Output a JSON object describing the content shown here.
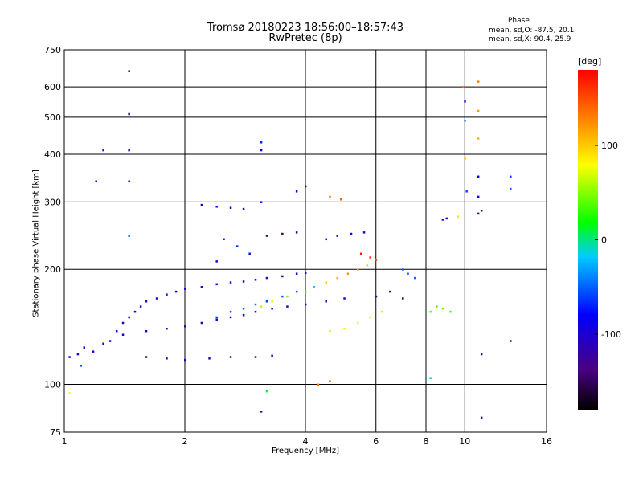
{
  "title_line1": "Tromsø 20180223 18:56:00–18:57:43",
  "title_line2": "RwPretec (8p)",
  "phase_box": {
    "title": "Phase",
    "o_line": "mean, sd,O: -87.5, 20.1",
    "x_line": "mean, sd,X:  90.4, 25.9"
  },
  "colorbar": {
    "label": "[deg]",
    "ticks": [
      "100",
      "0",
      "-100"
    ],
    "tick_values": [
      100,
      0,
      -100
    ],
    "range": [
      -180,
      180
    ]
  },
  "chart_data": {
    "type": "scatter",
    "xlabel": "Frequency [MHz]",
    "ylabel": "Stationary phase Virtual Height [km]",
    "xscale": "log",
    "yscale": "log",
    "xlim": [
      1,
      16
    ],
    "ylim": [
      75,
      750
    ],
    "xticks": [
      1,
      2,
      4,
      6,
      8,
      10,
      16
    ],
    "xtick_labels": [
      "1",
      "2",
      "4",
      "6",
      "8",
      "10",
      "16"
    ],
    "yticks": [
      75,
      100,
      200,
      300,
      400,
      500,
      600,
      750
    ],
    "ytick_labels": [
      "75",
      "100",
      "200",
      "300",
      "400",
      "500",
      "600",
      "750"
    ],
    "grid": true,
    "points": [
      [
        1.03,
        118,
        -110
      ],
      [
        1.08,
        120,
        -100
      ],
      [
        1.12,
        125,
        -105
      ],
      [
        1.18,
        122,
        -95
      ],
      [
        1.25,
        128,
        -110
      ],
      [
        1.3,
        130,
        -100
      ],
      [
        1.35,
        138,
        -105
      ],
      [
        1.4,
        145,
        -110
      ],
      [
        1.45,
        150,
        -100
      ],
      [
        1.5,
        155,
        -115
      ],
      [
        1.55,
        160,
        -105
      ],
      [
        1.6,
        165,
        -110
      ],
      [
        1.7,
        168,
        -100
      ],
      [
        1.8,
        172,
        -110
      ],
      [
        1.9,
        175,
        -105
      ],
      [
        2.0,
        178,
        -100
      ],
      [
        2.2,
        180,
        -110
      ],
      [
        2.4,
        183,
        -105
      ],
      [
        2.6,
        185,
        -100
      ],
      [
        2.8,
        186,
        -110
      ],
      [
        3.0,
        188,
        -105
      ],
      [
        3.2,
        190,
        -100
      ],
      [
        3.5,
        192,
        -110
      ],
      [
        3.8,
        195,
        -105
      ],
      [
        4.0,
        196,
        -100
      ],
      [
        1.4,
        135,
        -95
      ],
      [
        1.6,
        138,
        -100
      ],
      [
        1.8,
        140,
        -105
      ],
      [
        2.0,
        142,
        -110
      ],
      [
        2.2,
        145,
        -100
      ],
      [
        2.4,
        148,
        -105
      ],
      [
        2.6,
        150,
        -110
      ],
      [
        2.8,
        152,
        -100
      ],
      [
        3.0,
        155,
        -105
      ],
      [
        3.3,
        158,
        -110
      ],
      [
        3.6,
        160,
        -100
      ],
      [
        4.0,
        162,
        -105
      ],
      [
        4.5,
        165,
        -110
      ],
      [
        5.0,
        168,
        -100
      ],
      [
        1.6,
        118,
        -115
      ],
      [
        1.8,
        117,
        -120
      ],
      [
        2.0,
        116,
        -110
      ],
      [
        2.3,
        117,
        -115
      ],
      [
        2.6,
        118,
        -120
      ],
      [
        3.0,
        118,
        -110
      ],
      [
        3.3,
        119,
        -115
      ],
      [
        2.4,
        150,
        -60
      ],
      [
        2.6,
        155,
        -55
      ],
      [
        2.8,
        158,
        -50
      ],
      [
        3.0,
        162,
        -45
      ],
      [
        3.2,
        165,
        -60
      ],
      [
        3.5,
        170,
        -50
      ],
      [
        3.8,
        175,
        -55
      ],
      [
        3.1,
        160,
        60
      ],
      [
        3.3,
        165,
        70
      ],
      [
        3.6,
        170,
        50
      ],
      [
        4.0,
        175,
        40
      ],
      [
        4.2,
        180,
        -20
      ],
      [
        4.5,
        185,
        100
      ],
      [
        4.8,
        190,
        110
      ],
      [
        5.1,
        195,
        120
      ],
      [
        5.4,
        200,
        110
      ],
      [
        5.7,
        205,
        100
      ],
      [
        4.6,
        138,
        90
      ],
      [
        5.0,
        140,
        85
      ],
      [
        5.4,
        145,
        80
      ],
      [
        5.8,
        150,
        75
      ],
      [
        6.2,
        155,
        70
      ],
      [
        6.0,
        170,
        -140
      ],
      [
        6.5,
        175,
        -145
      ],
      [
        7.0,
        168,
        -150
      ],
      [
        4.5,
        240,
        -110
      ],
      [
        4.8,
        245,
        -105
      ],
      [
        5.2,
        248,
        -100
      ],
      [
        5.6,
        250,
        -95
      ],
      [
        3.2,
        245,
        -140
      ],
      [
        3.5,
        248,
        -145
      ],
      [
        3.8,
        250,
        -140
      ],
      [
        2.2,
        295,
        -90
      ],
      [
        2.4,
        292,
        -85
      ],
      [
        2.6,
        290,
        -95
      ],
      [
        2.8,
        288,
        -90
      ],
      [
        3.8,
        320,
        -80
      ],
      [
        4.0,
        330,
        -75
      ],
      [
        4.6,
        310,
        130
      ],
      [
        4.9,
        305,
        140
      ],
      [
        2.5,
        240,
        -70
      ],
      [
        2.7,
        230,
        -65
      ],
      [
        2.9,
        220,
        -75
      ],
      [
        2.4,
        210,
        -80
      ],
      [
        8.2,
        155,
        40
      ],
      [
        8.5,
        160,
        35
      ],
      [
        8.8,
        158,
        45
      ],
      [
        9.2,
        155,
        40
      ],
      [
        8.8,
        270,
        -100
      ],
      [
        9.0,
        272,
        -95
      ],
      [
        9.6,
        275,
        90
      ],
      [
        10.8,
        280,
        -140
      ],
      [
        11.0,
        285,
        -145
      ],
      [
        10.8,
        620,
        130
      ],
      [
        10.8,
        520,
        120
      ],
      [
        10.8,
        440,
        110
      ],
      [
        10.8,
        350,
        -80
      ],
      [
        10.8,
        310,
        -90
      ],
      [
        9.9,
        600,
        140
      ],
      [
        10.0,
        550,
        -120
      ],
      [
        10.0,
        490,
        -40
      ],
      [
        10.0,
        390,
        110
      ],
      [
        10.1,
        320,
        -60
      ],
      [
        1.45,
        660,
        -150
      ],
      [
        1.45,
        510,
        -110
      ],
      [
        1.45,
        410,
        -100
      ],
      [
        1.45,
        340,
        -90
      ],
      [
        1.45,
        245,
        -50
      ],
      [
        1.03,
        95,
        80
      ],
      [
        1.1,
        112,
        -60
      ],
      [
        1.25,
        410,
        -70
      ],
      [
        1.2,
        340,
        -100
      ],
      [
        3.1,
        430,
        -70
      ],
      [
        3.1,
        410,
        -90
      ],
      [
        3.1,
        300,
        -80
      ],
      [
        3.1,
        85,
        -130
      ],
      [
        13.0,
        350,
        -60
      ],
      [
        13.0,
        325,
        -50
      ],
      [
        13.0,
        130,
        -150
      ],
      [
        11.0,
        82,
        -120
      ],
      [
        11.0,
        120,
        -100
      ],
      [
        7.0,
        200,
        -55
      ],
      [
        7.2,
        195,
        -60
      ],
      [
        7.5,
        190,
        -50
      ],
      [
        5.5,
        220,
        170
      ],
      [
        5.8,
        215,
        160
      ],
      [
        6.0,
        212,
        150
      ],
      [
        4.3,
        100,
        130
      ],
      [
        4.6,
        102,
        150
      ],
      [
        8.2,
        104,
        -20
      ],
      [
        3.2,
        96,
        10
      ]
    ]
  }
}
